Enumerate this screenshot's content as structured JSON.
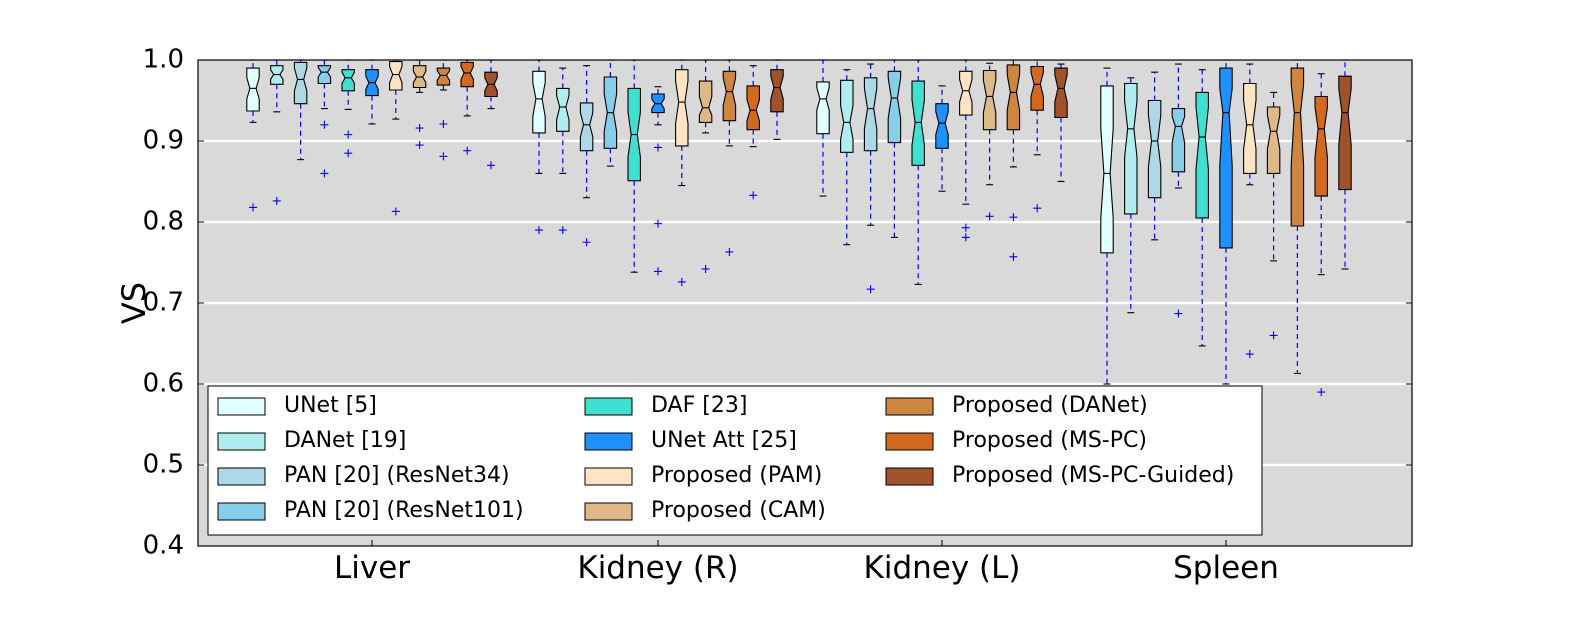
{
  "chart_data": {
    "type": "boxplot",
    "title": "",
    "ylabel": "VS",
    "xlabel": "",
    "ylim": [
      0.4,
      1.0
    ],
    "yticks": [
      "0.4",
      "0.5",
      "0.6",
      "0.7",
      "0.8",
      "0.9",
      "1.0"
    ],
    "grid": true,
    "legend_position": "lower-left",
    "groups": [
      "Liver",
      "Kidney (R)",
      "Kidney (L)",
      "Spleen"
    ],
    "series": [
      {
        "name": "UNet [5]",
        "color": "#e0ffff"
      },
      {
        "name": "DANet [19]",
        "color": "#afeeee"
      },
      {
        "name": "PAN [20] (ResNet34)",
        "color": "#add8e6"
      },
      {
        "name": "PAN [20] (ResNet101)",
        "color": "#87ceeb"
      },
      {
        "name": "DAF [23]",
        "color": "#40e0d0"
      },
      {
        "name": "UNet Att [25]",
        "color": "#1e90ff"
      },
      {
        "name": "Proposed (PAM)",
        "color": "#ffe4c4"
      },
      {
        "name": "Proposed (CAM)",
        "color": "#deb887"
      },
      {
        "name": "Proposed (DANet)",
        "color": "#cd853f"
      },
      {
        "name": "Proposed (MS-PC)",
        "color": "#d2691e"
      },
      {
        "name": "Proposed (MS-PC-Guided)",
        "color": "#a0522d"
      }
    ],
    "boxes": [
      [
        {
          "q1": 0.937,
          "med": 0.965,
          "q3": 0.99,
          "wlo": 0.923,
          "whi": 1.0,
          "nlo": 0.952,
          "nhi": 0.978,
          "fliers": [
            0.818
          ]
        },
        {
          "q1": 0.97,
          "med": 0.982,
          "q3": 0.993,
          "wlo": 0.936,
          "whi": 1.0,
          "nlo": 0.976,
          "nhi": 0.988,
          "fliers": [
            0.826
          ]
        },
        {
          "q1": 0.946,
          "med": 0.976,
          "q3": 0.997,
          "wlo": 0.877,
          "whi": 1.0,
          "nlo": 0.962,
          "nhi": 0.99,
          "fliers": []
        },
        {
          "q1": 0.971,
          "med": 0.985,
          "q3": 0.993,
          "wlo": 0.94,
          "whi": 1.0,
          "nlo": 0.979,
          "nhi": 0.991,
          "fliers": [
            0.92,
            0.86
          ]
        },
        {
          "q1": 0.962,
          "med": 0.978,
          "q3": 0.988,
          "wlo": 0.939,
          "whi": 1.0,
          "nlo": 0.971,
          "nhi": 0.985,
          "fliers": [
            0.908,
            0.885
          ]
        },
        {
          "q1": 0.956,
          "med": 0.972,
          "q3": 0.988,
          "wlo": 0.921,
          "whi": 1.0,
          "nlo": 0.964,
          "nhi": 0.98,
          "fliers": []
        },
        {
          "q1": 0.963,
          "med": 0.982,
          "q3": 0.998,
          "wlo": 0.927,
          "whi": 1.0,
          "nlo": 0.972,
          "nhi": 0.992,
          "fliers": [
            0.813
          ]
        },
        {
          "q1": 0.966,
          "med": 0.979,
          "q3": 0.993,
          "wlo": 0.96,
          "whi": 1.0,
          "nlo": 0.972,
          "nhi": 0.986,
          "fliers": [
            0.916,
            0.895
          ]
        },
        {
          "q1": 0.969,
          "med": 0.981,
          "q3": 0.99,
          "wlo": 0.963,
          "whi": 1.0,
          "nlo": 0.975,
          "nhi": 0.987,
          "fliers": [
            0.921,
            0.881
          ]
        },
        {
          "q1": 0.967,
          "med": 0.984,
          "q3": 0.997,
          "wlo": 0.931,
          "whi": 1.0,
          "nlo": 0.976,
          "nhi": 0.992,
          "fliers": [
            0.888
          ]
        },
        {
          "q1": 0.955,
          "med": 0.97,
          "q3": 0.985,
          "wlo": 0.94,
          "whi": 1.0,
          "nlo": 0.962,
          "nhi": 0.978,
          "fliers": [
            0.87
          ]
        }
      ],
      [
        {
          "q1": 0.91,
          "med": 0.952,
          "q3": 0.986,
          "wlo": 0.86,
          "whi": 1.0,
          "nlo": 0.93,
          "nhi": 0.972,
          "fliers": [
            0.79
          ]
        },
        {
          "q1": 0.912,
          "med": 0.942,
          "q3": 0.965,
          "wlo": 0.86,
          "whi": 0.99,
          "nlo": 0.926,
          "nhi": 0.956,
          "fliers": [
            0.79
          ]
        },
        {
          "q1": 0.888,
          "med": 0.92,
          "q3": 0.947,
          "wlo": 0.83,
          "whi": 0.993,
          "nlo": 0.905,
          "nhi": 0.935,
          "fliers": [
            0.775
          ]
        },
        {
          "q1": 0.891,
          "med": 0.935,
          "q3": 0.979,
          "wlo": 0.869,
          "whi": 1.0,
          "nlo": 0.912,
          "nhi": 0.958,
          "fliers": []
        },
        {
          "q1": 0.851,
          "med": 0.908,
          "q3": 0.965,
          "wlo": 0.738,
          "whi": 1.0,
          "nlo": 0.88,
          "nhi": 0.936,
          "fliers": []
        },
        {
          "q1": 0.935,
          "med": 0.946,
          "q3": 0.958,
          "wlo": 0.92,
          "whi": 0.967,
          "nlo": 0.94,
          "nhi": 0.952,
          "fliers": [
            0.892,
            0.798,
            0.739
          ]
        },
        {
          "q1": 0.894,
          "med": 0.948,
          "q3": 0.988,
          "wlo": 0.845,
          "whi": 1.0,
          "nlo": 0.922,
          "nhi": 0.974,
          "fliers": [
            0.726
          ]
        },
        {
          "q1": 0.923,
          "med": 0.941,
          "q3": 0.974,
          "wlo": 0.91,
          "whi": 1.0,
          "nlo": 0.932,
          "nhi": 0.955,
          "fliers": [
            0.742
          ]
        },
        {
          "q1": 0.925,
          "med": 0.961,
          "q3": 0.986,
          "wlo": 0.894,
          "whi": 1.0,
          "nlo": 0.944,
          "nhi": 0.978,
          "fliers": [
            0.763
          ]
        },
        {
          "q1": 0.914,
          "med": 0.938,
          "q3": 0.968,
          "wlo": 0.893,
          "whi": 0.993,
          "nlo": 0.925,
          "nhi": 0.951,
          "fliers": [
            0.833
          ]
        },
        {
          "q1": 0.936,
          "med": 0.966,
          "q3": 0.988,
          "wlo": 0.902,
          "whi": 1.0,
          "nlo": 0.952,
          "nhi": 0.98,
          "fliers": []
        }
      ],
      [
        {
          "q1": 0.909,
          "med": 0.952,
          "q3": 0.973,
          "wlo": 0.832,
          "whi": 1.0,
          "nlo": 0.938,
          "nhi": 0.966,
          "fliers": []
        },
        {
          "q1": 0.886,
          "med": 0.923,
          "q3": 0.975,
          "wlo": 0.772,
          "whi": 0.988,
          "nlo": 0.902,
          "nhi": 0.944,
          "fliers": []
        },
        {
          "q1": 0.888,
          "med": 0.94,
          "q3": 0.978,
          "wlo": 0.796,
          "whi": 0.995,
          "nlo": 0.915,
          "nhi": 0.965,
          "fliers": [
            0.717
          ]
        },
        {
          "q1": 0.898,
          "med": 0.953,
          "q3": 0.986,
          "wlo": 0.781,
          "whi": 1.0,
          "nlo": 0.928,
          "nhi": 0.978,
          "fliers": []
        },
        {
          "q1": 0.87,
          "med": 0.923,
          "q3": 0.974,
          "wlo": 0.723,
          "whi": 1.0,
          "nlo": 0.895,
          "nhi": 0.951,
          "fliers": []
        },
        {
          "q1": 0.891,
          "med": 0.922,
          "q3": 0.946,
          "wlo": 0.838,
          "whi": 0.968,
          "nlo": 0.908,
          "nhi": 0.936,
          "fliers": []
        },
        {
          "q1": 0.932,
          "med": 0.962,
          "q3": 0.986,
          "wlo": 0.822,
          "whi": 1.0,
          "nlo": 0.948,
          "nhi": 0.976,
          "fliers": [
            0.793,
            0.781
          ]
        },
        {
          "q1": 0.914,
          "med": 0.955,
          "q3": 0.987,
          "wlo": 0.846,
          "whi": 0.996,
          "nlo": 0.935,
          "nhi": 0.975,
          "fliers": [
            0.807
          ]
        },
        {
          "q1": 0.914,
          "med": 0.96,
          "q3": 0.994,
          "wlo": 0.868,
          "whi": 1.0,
          "nlo": 0.938,
          "nhi": 0.982,
          "fliers": [
            0.806,
            0.757
          ]
        },
        {
          "q1": 0.938,
          "med": 0.97,
          "q3": 0.992,
          "wlo": 0.883,
          "whi": 1.0,
          "nlo": 0.955,
          "nhi": 0.985,
          "fliers": [
            0.817
          ]
        },
        {
          "q1": 0.929,
          "med": 0.965,
          "q3": 0.99,
          "wlo": 0.85,
          "whi": 0.995,
          "nlo": 0.948,
          "nhi": 0.982,
          "fliers": []
        }
      ],
      [
        {
          "q1": 0.762,
          "med": 0.86,
          "q3": 0.968,
          "wlo": 0.6,
          "whi": 0.99,
          "nlo": 0.805,
          "nhi": 0.915,
          "fliers": []
        },
        {
          "q1": 0.81,
          "med": 0.915,
          "q3": 0.971,
          "wlo": 0.688,
          "whi": 0.978,
          "nlo": 0.88,
          "nhi": 0.95,
          "fliers": []
        },
        {
          "q1": 0.83,
          "med": 0.9,
          "q3": 0.95,
          "wlo": 0.778,
          "whi": 0.985,
          "nlo": 0.868,
          "nhi": 0.932,
          "fliers": []
        },
        {
          "q1": 0.862,
          "med": 0.918,
          "q3": 0.94,
          "wlo": 0.842,
          "whi": 0.995,
          "nlo": 0.898,
          "nhi": 0.93,
          "fliers": [
            0.687
          ]
        },
        {
          "q1": 0.805,
          "med": 0.905,
          "q3": 0.96,
          "wlo": 0.647,
          "whi": 0.988,
          "nlo": 0.865,
          "nhi": 0.942,
          "fliers": []
        },
        {
          "q1": 0.768,
          "med": 0.935,
          "q3": 0.99,
          "wlo": 0.6,
          "whi": 1.0,
          "nlo": 0.87,
          "nhi": 0.965,
          "fliers": []
        },
        {
          "q1": 0.86,
          "med": 0.92,
          "q3": 0.971,
          "wlo": 0.846,
          "whi": 0.995,
          "nlo": 0.89,
          "nhi": 0.95,
          "fliers": [
            0.637
          ]
        },
        {
          "q1": 0.86,
          "med": 0.912,
          "q3": 0.942,
          "wlo": 0.752,
          "whi": 0.96,
          "nlo": 0.89,
          "nhi": 0.932,
          "fliers": [
            0.66
          ]
        },
        {
          "q1": 0.795,
          "med": 0.935,
          "q3": 0.99,
          "wlo": 0.613,
          "whi": 1.0,
          "nlo": 0.87,
          "nhi": 0.97,
          "fliers": []
        },
        {
          "q1": 0.832,
          "med": 0.915,
          "q3": 0.955,
          "wlo": 0.735,
          "whi": 0.983,
          "nlo": 0.88,
          "nhi": 0.942,
          "fliers": [
            0.59
          ]
        },
        {
          "q1": 0.84,
          "med": 0.935,
          "q3": 0.98,
          "wlo": 0.742,
          "whi": 1.0,
          "nlo": 0.895,
          "nhi": 0.965,
          "fliers": []
        }
      ]
    ]
  }
}
